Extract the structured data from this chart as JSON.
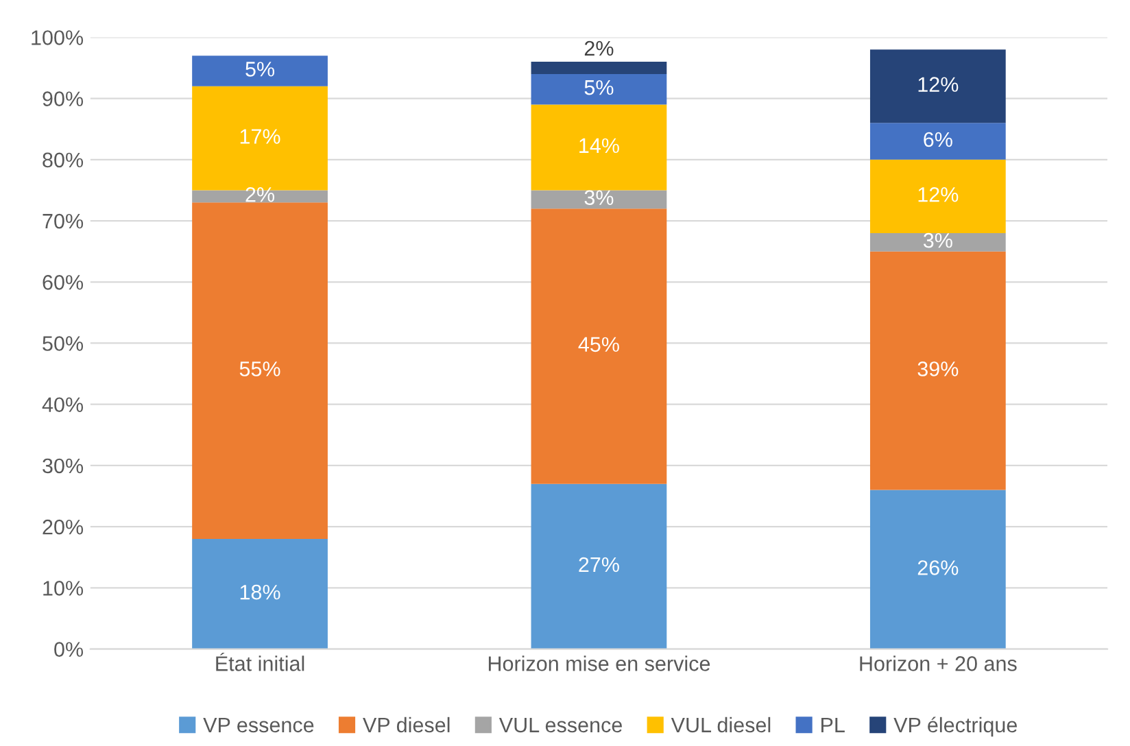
{
  "chart_data": {
    "type": "bar",
    "stacked": true,
    "categories": [
      "État initial",
      "Horizon mise en service",
      "Horizon + 20 ans"
    ],
    "series": [
      {
        "name": "VP essence",
        "color": "#5b9bd5",
        "values": [
          18,
          27,
          26
        ],
        "value_labels": [
          "18%",
          "27%",
          "26%"
        ]
      },
      {
        "name": "VP diesel",
        "color": "#ed7d31",
        "values": [
          55,
          45,
          39
        ],
        "value_labels": [
          "55%",
          "45%",
          "39%"
        ]
      },
      {
        "name": "VUL essence",
        "color": "#a5a5a5",
        "values": [
          2,
          3,
          3
        ],
        "value_labels": [
          "2%",
          "3%",
          "3%"
        ]
      },
      {
        "name": "VUL diesel",
        "color": "#ffc000",
        "values": [
          17,
          14,
          12
        ],
        "value_labels": [
          "17%",
          "14%",
          "12%"
        ]
      },
      {
        "name": "PL",
        "color": "#4472c4",
        "values": [
          5,
          5,
          6
        ],
        "value_labels": [
          "5%",
          "5%",
          "6%"
        ]
      },
      {
        "name": "VP électrique",
        "color": "#264478",
        "values": [
          null,
          2,
          12
        ],
        "value_labels": [
          null,
          "2%",
          "12%"
        ]
      }
    ],
    "ylim": [
      0,
      100
    ],
    "yticks": [
      {
        "value": 0,
        "label": "0%"
      },
      {
        "value": 10,
        "label": "10%"
      },
      {
        "value": 20,
        "label": "20%"
      },
      {
        "value": 30,
        "label": "30%"
      },
      {
        "value": 40,
        "label": "40%"
      },
      {
        "value": 50,
        "label": "50%"
      },
      {
        "value": 60,
        "label": "60%"
      },
      {
        "value": 70,
        "label": "70%"
      },
      {
        "value": 80,
        "label": "80%"
      },
      {
        "value": 90,
        "label": "90%"
      },
      {
        "value": 100,
        "label": "100%"
      }
    ],
    "grid": "y",
    "legend": "bottom"
  }
}
